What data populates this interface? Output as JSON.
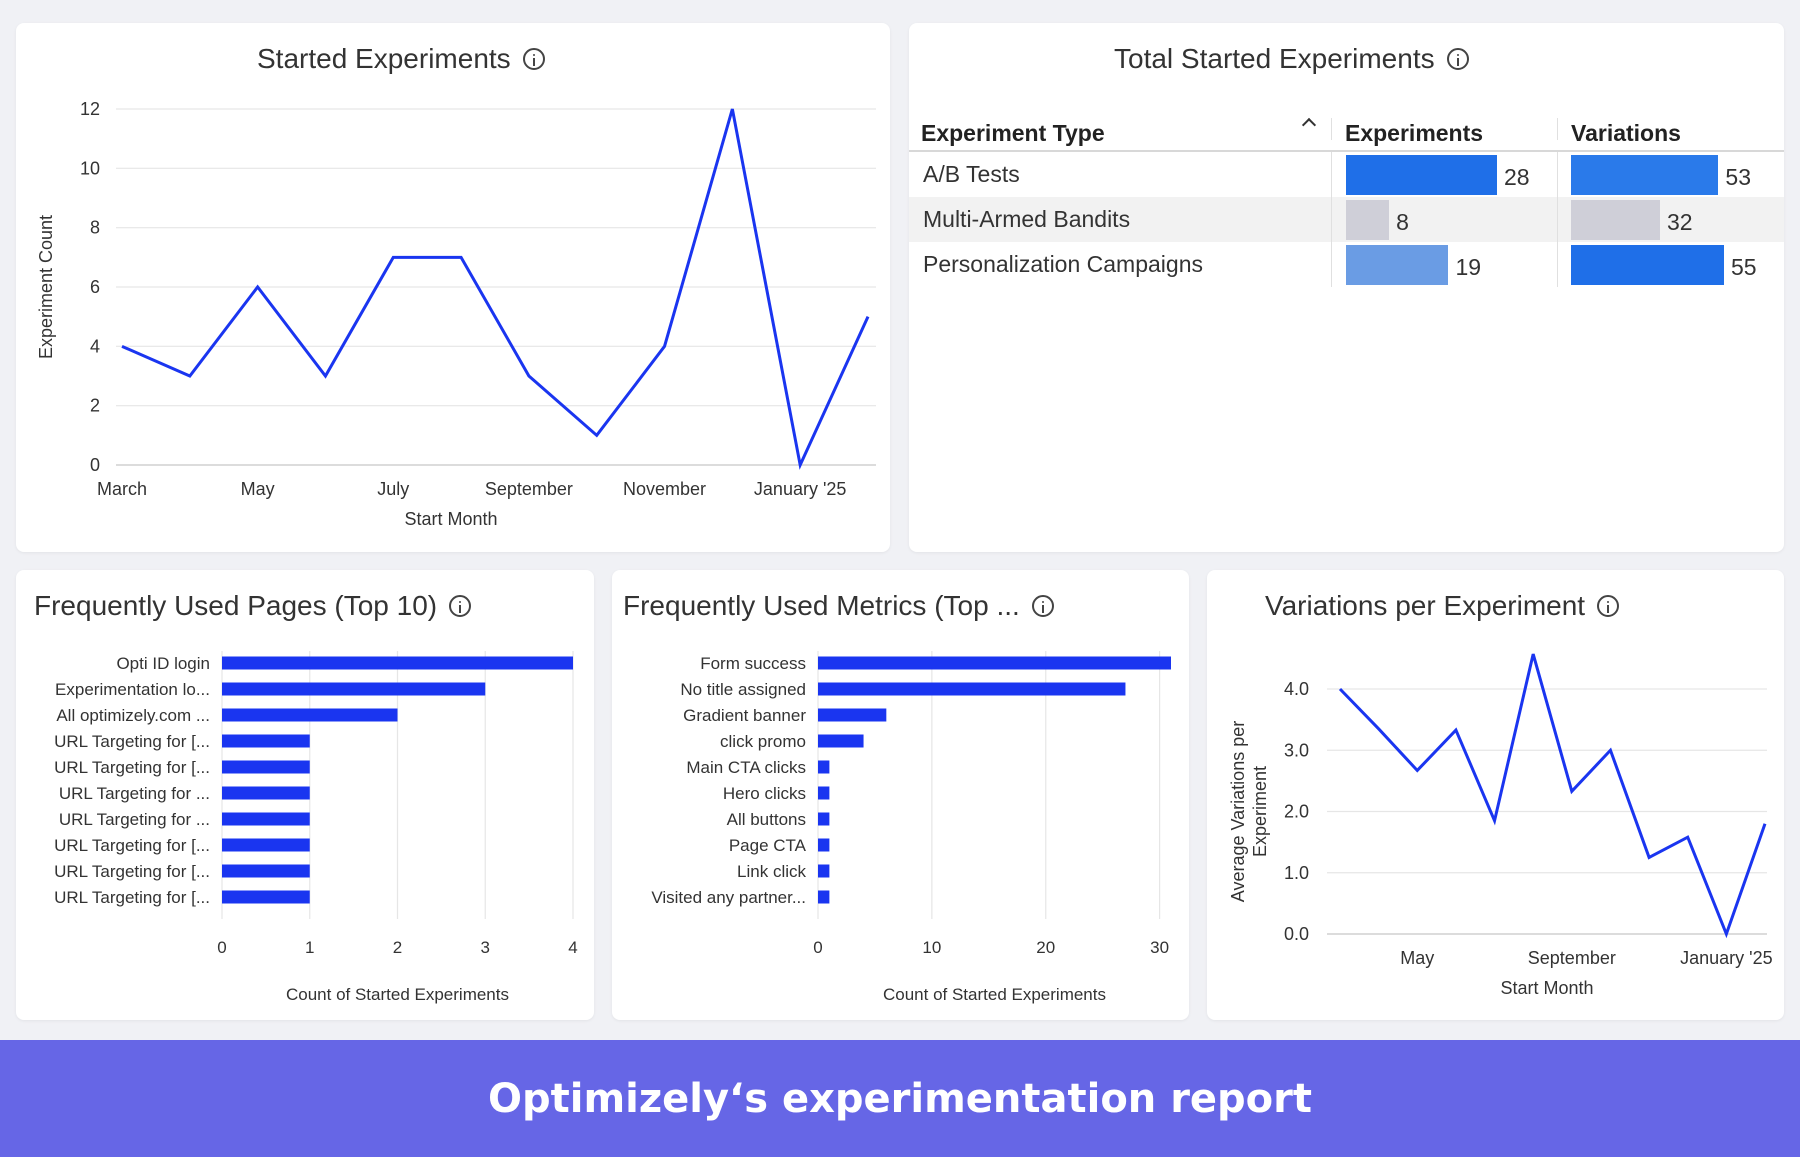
{
  "started_experiments": {
    "title": "Started Experiments",
    "info_icon": "info-icon",
    "chart_data": {
      "type": "line",
      "x": [
        "March",
        "April",
        "May",
        "June",
        "July",
        "August",
        "September",
        "October",
        "November",
        "December",
        "January '25",
        "February"
      ],
      "x_tick_labels": [
        "March",
        "May",
        "July",
        "September",
        "November",
        "January '25"
      ],
      "series": [
        {
          "values": [
            4,
            3,
            6,
            3,
            7,
            7,
            3,
            1,
            4,
            12,
            0,
            5
          ],
          "color": "#1a35f0"
        }
      ],
      "xlabel": "Start Month",
      "ylabel": "Experiment Count",
      "ylim": [
        0,
        12
      ],
      "yticks": [
        0,
        2,
        4,
        6,
        8,
        10,
        12
      ],
      "grid": true
    }
  },
  "total_started": {
    "title": "Total Started Experiments",
    "info_icon": "info-icon",
    "columns": [
      "Experiment Type",
      "Experiments",
      "Variations"
    ],
    "sort_icon": "chevron-up-icon",
    "rows": [
      {
        "name": "A/B Tests",
        "experiments": 28,
        "variations": 53,
        "exp_color": "#1f6fe8",
        "var_color": "#2a7aea"
      },
      {
        "name": "Multi-Armed Bandits",
        "experiments": 8,
        "variations": 32,
        "exp_color": "#cfcfd8",
        "var_color": "#cfcfd8"
      },
      {
        "name": "Personalization Campaigns",
        "experiments": 19,
        "variations": 55,
        "exp_color": "#6a9ce4",
        "var_color": "#1f6fe8"
      }
    ],
    "exp_max": 28,
    "var_max": 55
  },
  "pages": {
    "title": "Frequently Used Pages (Top 10)",
    "info_icon": "info-icon",
    "chart_data": {
      "type": "bar",
      "orientation": "horizontal",
      "categories": [
        "Opti ID login",
        "Experimentation lo...",
        "All optimizely.com ...",
        "URL Targeting for [...",
        "URL Targeting for [...",
        "URL Targeting for ...",
        "URL Targeting for ...",
        "URL Targeting for [...",
        "URL Targeting for [...",
        "URL Targeting for [..."
      ],
      "values": [
        4,
        3,
        2,
        1,
        1,
        1,
        1,
        1,
        1,
        1
      ],
      "xlabel": "Count of Started Experiments",
      "xlim": [
        0,
        4
      ],
      "xticks": [
        0,
        1,
        2,
        3,
        4
      ],
      "color": "#1a35f0",
      "grid": true
    }
  },
  "metrics": {
    "title": "Frequently Used Metrics (Top ...",
    "info_icon": "info-icon",
    "chart_data": {
      "type": "bar",
      "orientation": "horizontal",
      "categories": [
        "Form success",
        "No title assigned",
        "Gradient banner",
        "click promo",
        "Main CTA clicks",
        "Hero clicks",
        "All buttons",
        "Page CTA",
        "Link click",
        "Visited any partner..."
      ],
      "values": [
        31,
        27,
        6,
        4,
        1,
        1,
        1,
        1,
        1,
        1
      ],
      "xlabel": "Count of Started Experiments",
      "xlim": [
        0,
        31
      ],
      "xticks": [
        0,
        10,
        20,
        30
      ],
      "color": "#1a35f0",
      "grid": true
    }
  },
  "variations": {
    "title": "Variations per Experiment",
    "info_icon": "info-icon",
    "chart_data": {
      "type": "line",
      "x": [
        "March",
        "April",
        "May",
        "June",
        "July",
        "August",
        "September",
        "October",
        "November",
        "December",
        "January '25",
        "February"
      ],
      "x_tick_labels": [
        "May",
        "September",
        "January '25"
      ],
      "series": [
        {
          "values": [
            4.0,
            3.35,
            2.67,
            3.33,
            1.85,
            4.57,
            2.33,
            3.0,
            1.25,
            1.58,
            0.0,
            1.8
          ],
          "color": "#1a35f0"
        }
      ],
      "xlabel": "Start Month",
      "ylabel": "Average Variations per Experiment",
      "ylim": [
        0,
        4.0
      ],
      "yticks": [
        "0.0",
        "1.0",
        "2.0",
        "3.0",
        "4.0"
      ],
      "grid": true
    }
  },
  "banner": {
    "text": "Optimizely‘s experimentation report",
    "color": "#6666e6"
  }
}
